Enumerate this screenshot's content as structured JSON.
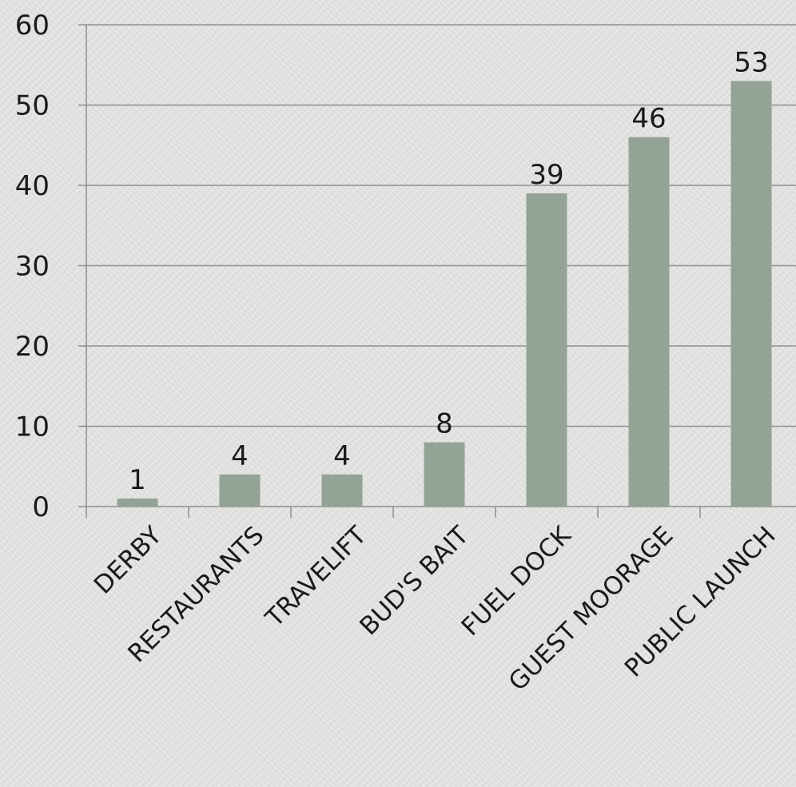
{
  "chart_data": {
    "type": "bar",
    "title": "",
    "xlabel": "",
    "ylabel": "",
    "categories": [
      "DERBY",
      "RESTAURANTS",
      "TRAVELIFT",
      "BUD'S BAIT",
      "FUEL DOCK",
      "GUEST MOORAGE",
      "PUBLIC LAUNCH"
    ],
    "values": [
      1,
      4,
      4,
      8,
      39,
      46,
      53
    ],
    "data_labels": [
      "1",
      "4",
      "4",
      "8",
      "39",
      "46",
      "53"
    ],
    "ylim": [
      0,
      60
    ],
    "yticks": [
      0,
      10,
      20,
      30,
      40,
      50,
      60
    ],
    "ytick_labels": [
      "0",
      "10",
      "20",
      "30",
      "40",
      "50",
      "60"
    ],
    "grid": true,
    "legend": "none",
    "bar_color": "#93a396",
    "grid_color": "#8f8f8f"
  }
}
